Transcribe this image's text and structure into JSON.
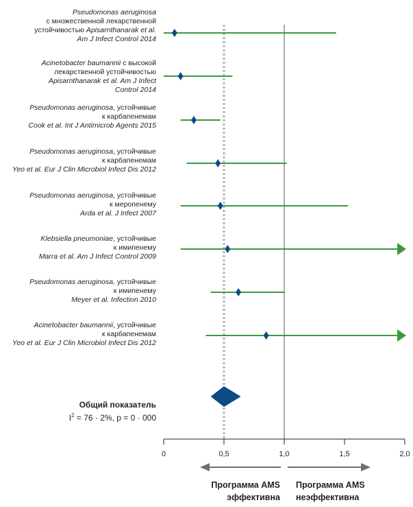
{
  "chart_data": {
    "type": "forest",
    "xlim": [
      0,
      2.0
    ],
    "x_ticks": [
      "0",
      "0,5",
      "1,0",
      "1,5",
      "2,0"
    ],
    "x_tick_values": [
      0,
      0.5,
      1.0,
      1.5,
      2.0
    ],
    "null_line": 1.0,
    "pooled_line": 0.5,
    "studies": [
      {
        "text": [
          [
            {
              "t": "Pseudomonas aeruginosa",
              "i": true
            }
          ],
          [
            {
              "t": "с множественной лекарственной",
              "i": false
            }
          ],
          [
            {
              "t": "устойчивостью ",
              "i": false
            },
            {
              "t": "Apisarnthanarak et al.",
              "i": true
            }
          ],
          [
            {
              "t": "Am J Infect Control 2014",
              "i": true
            }
          ]
        ],
        "est": 0.09,
        "lo": 0.0,
        "hi": 1.43,
        "arrow": false
      },
      {
        "text": [
          [
            {
              "t": "Acinetobacter baumannii",
              "i": true
            },
            {
              "t": " с высокой",
              "i": false
            }
          ],
          [
            {
              "t": "лекарственной устойчивостью",
              "i": false
            }
          ],
          [
            {
              "t": "Apisarnthanarak et al. Am J Infect",
              "i": true
            }
          ],
          [
            {
              "t": "Control 2014",
              "i": true
            }
          ]
        ],
        "est": 0.14,
        "lo": 0.0,
        "hi": 0.57,
        "arrow": false
      },
      {
        "text": [
          [
            {
              "t": "Pseudomonas aeruginosa",
              "i": true
            },
            {
              "t": ", устойчивые",
              "i": false
            }
          ],
          [
            {
              "t": "к карбапенемам",
              "i": false
            }
          ],
          [
            {
              "t": "Cook et al. Int J Antimicrob Agents 2015",
              "i": true
            }
          ]
        ],
        "est": 0.25,
        "lo": 0.14,
        "hi": 0.47,
        "arrow": false
      },
      {
        "text": [
          [
            {
              "t": "Pseudomonas aeruginosa",
              "i": true
            },
            {
              "t": ", устойчивые",
              "i": false
            }
          ],
          [
            {
              "t": "к карбапенемам",
              "i": false
            }
          ],
          [
            {
              "t": "Yeo et al. Eur J Clin Microbiol Infect Dis 2012",
              "i": true
            }
          ]
        ],
        "est": 0.45,
        "lo": 0.19,
        "hi": 1.02,
        "arrow": false
      },
      {
        "text": [
          [
            {
              "t": "Pseudomonas aeruginosa",
              "i": true
            },
            {
              "t": ", устойчивые",
              "i": false
            }
          ],
          [
            {
              "t": "к меропенему",
              "i": false
            }
          ],
          [
            {
              "t": "Arda et al. J Infect 2007",
              "i": true
            }
          ]
        ],
        "est": 0.47,
        "lo": 0.14,
        "hi": 1.53,
        "arrow": false
      },
      {
        "text": [
          [
            {
              "t": "Klebsiella pneumoniae",
              "i": true
            },
            {
              "t": ", устойчивые",
              "i": false
            }
          ],
          [
            {
              "t": "к имипенему",
              "i": false
            }
          ],
          [
            {
              "t": "Marra et al. Am J Infect Control 2009",
              "i": true
            }
          ]
        ],
        "est": 0.53,
        "lo": 0.14,
        "hi": 2.0,
        "arrow": true
      },
      {
        "text": [
          [
            {
              "t": "Pseudomonas aeruginosa",
              "i": true
            },
            {
              "t": ", устойчивые",
              "i": false
            }
          ],
          [
            {
              "t": "к имипенему",
              "i": false
            }
          ],
          [
            {
              "t": "Meyer et al. Infection 2010",
              "i": true
            }
          ]
        ],
        "est": 0.62,
        "lo": 0.39,
        "hi": 1.0,
        "arrow": false
      },
      {
        "text": [
          [
            {
              "t": "Acinetobacter baumannii",
              "i": true
            },
            {
              "t": ", устойчивые",
              "i": false
            }
          ],
          [
            {
              "t": "к карбапенемам",
              "i": false
            }
          ],
          [
            {
              "t": "Yeo et al. Eur J Clin Microbiol Infect Dis 2012",
              "i": true
            }
          ]
        ],
        "est": 0.85,
        "lo": 0.35,
        "hi": 2.0,
        "arrow": true
      }
    ],
    "pooled": {
      "est": 0.5,
      "lo": 0.39,
      "hi": 0.64
    },
    "colors": {
      "ci_line": "#3a9b3c",
      "marker": "#0d4a86",
      "null_line": "#555555",
      "pooled_line": "#b3b3b3",
      "arrow_grey": "#6d6e71"
    }
  },
  "summary": {
    "title": "Общий показатель",
    "i2_symbol": "I",
    "i2_exp": "2",
    "stats": " = 76 · 2%, p = 0 · 000"
  },
  "verdict": {
    "left_line1": "Программа AMS",
    "left_line2": "эффективна",
    "right_line1": "Программа AMS",
    "right_line2": "неэффективна"
  }
}
